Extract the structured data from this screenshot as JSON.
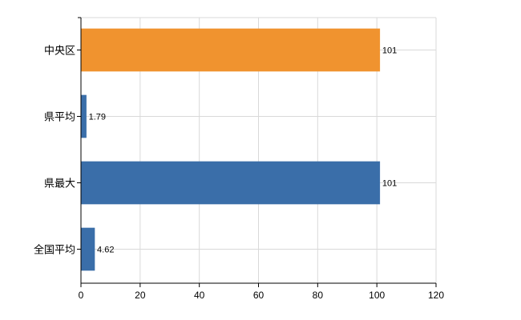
{
  "chart_data": {
    "type": "bar",
    "orientation": "horizontal",
    "categories": [
      "中央区",
      "県平均",
      "県最大",
      "全国平均"
    ],
    "values": [
      101,
      1.79,
      101,
      4.62
    ],
    "data_labels": [
      "101",
      "1.79",
      "101",
      "4.62"
    ],
    "bar_colors": [
      "#f0932f",
      "#3a6ea9",
      "#3a6ea9",
      "#3a6ea9"
    ],
    "xlim": [
      0,
      120
    ],
    "xticks": [
      0,
      20,
      40,
      60,
      80,
      100,
      120
    ],
    "grid": true,
    "legend": "none"
  }
}
